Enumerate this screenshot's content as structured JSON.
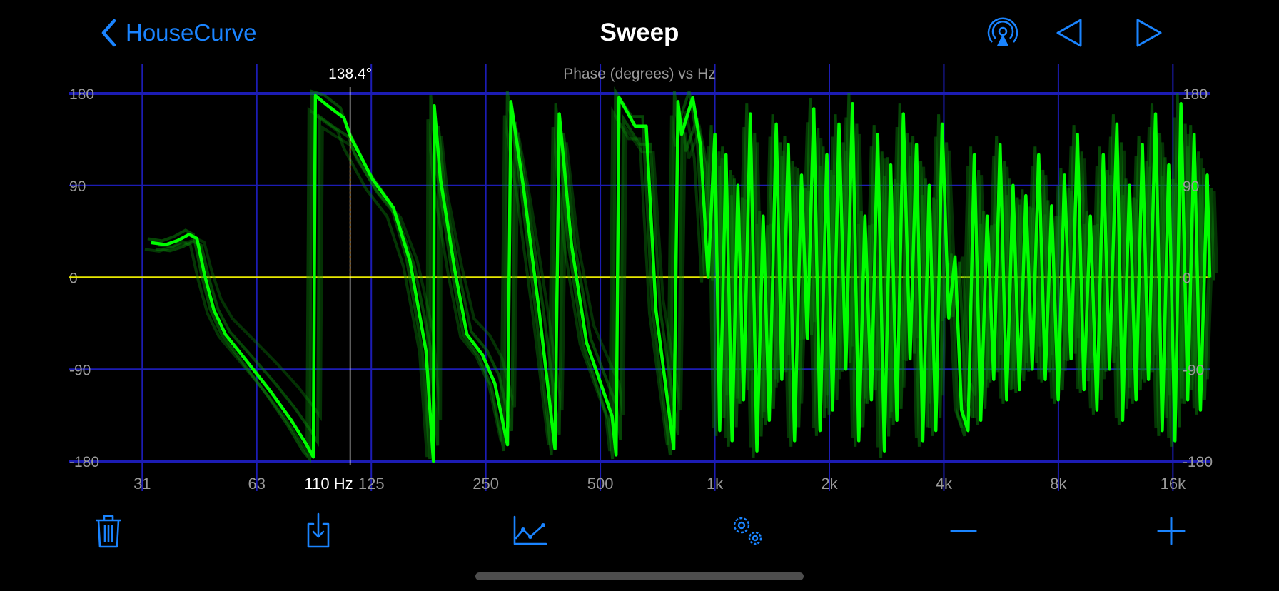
{
  "header": {
    "back_label": "HouseCurve",
    "title": "Sweep",
    "icons": [
      "airplay-audio-icon",
      "previous-triangle-icon",
      "next-triangle-icon"
    ]
  },
  "toolbar": {
    "icons": [
      "trash-icon",
      "download-icon",
      "chart-line-icon",
      "gears-icon",
      "minus-icon",
      "plus-icon"
    ]
  },
  "colors": {
    "accent": "#1a84ff",
    "curve": "#00ff00",
    "grid": "#1c1cb4",
    "zero_line": "#e8e800",
    "cursor": "#ffffff",
    "cursor_drop": "#ff9900"
  },
  "cursor": {
    "value_label": "138.4°",
    "freq_label": "110 Hz",
    "freq": 110,
    "phase": 138.4
  },
  "chart_data": {
    "type": "line",
    "title": "Phase (degrees) vs Hz",
    "xscale": "log",
    "xlim": [
      20,
      20000
    ],
    "ylim": [
      -180,
      180
    ],
    "grid": true,
    "x_ticks": [
      31.25,
      62.5,
      125,
      250,
      500,
      1000,
      2000,
      4000,
      8000,
      16000
    ],
    "x_tick_labels": [
      "31",
      "63",
      "125",
      "250",
      "500",
      "1k",
      "2k",
      "4k",
      "8k",
      "16k"
    ],
    "y_ticks": [
      180,
      90,
      0,
      -90,
      -180
    ],
    "y_tick_labels": [
      "180",
      "90",
      "0",
      "-90",
      "-180"
    ],
    "series": [
      {
        "points": [
          [
            33,
            34
          ],
          [
            36,
            32
          ],
          [
            38.7,
            36
          ],
          [
            41.5,
            42
          ],
          [
            43.5,
            38
          ],
          [
            45.6,
            2
          ],
          [
            48.2,
            -32
          ],
          [
            51.7,
            -56
          ],
          [
            58.2,
            -80
          ],
          [
            68,
            -112
          ],
          [
            77,
            -140
          ],
          [
            84.5,
            -164
          ],
          [
            88,
            -176
          ],
          [
            89.1,
            178
          ],
          [
            96,
            168
          ],
          [
            106,
            156
          ],
          [
            110,
            138.4
          ],
          [
            126,
            96
          ],
          [
            143,
            68
          ],
          [
            158,
            16
          ],
          [
            174,
            -72
          ],
          [
            182,
            -180
          ],
          [
            183,
            168
          ],
          [
            190,
            96
          ],
          [
            207,
            8
          ],
          [
            223,
            -56
          ],
          [
            245,
            -76
          ],
          [
            264,
            -104
          ],
          [
            285,
            -164
          ],
          [
            291,
            172
          ],
          [
            314,
            88
          ],
          [
            345,
            -32
          ],
          [
            380,
            -168
          ],
          [
            390,
            160
          ],
          [
            420,
            32
          ],
          [
            460,
            -64
          ],
          [
            537,
            -136
          ],
          [
            550,
            -174
          ],
          [
            560,
            176
          ],
          [
            617,
            148
          ],
          [
            660,
            148
          ],
          [
            700,
            -32
          ],
          [
            780,
            -168
          ],
          [
            800,
            172
          ],
          [
            818,
            140
          ],
          [
            875,
            176
          ],
          [
            918,
            128
          ],
          [
            960,
            0
          ],
          [
            1000,
            140
          ],
          [
            1030,
            -150
          ],
          [
            1070,
            120
          ],
          [
            1110,
            -160
          ],
          [
            1150,
            90
          ],
          [
            1190,
            -120
          ],
          [
            1240,
            160
          ],
          [
            1290,
            -170
          ],
          [
            1340,
            60
          ],
          [
            1390,
            -140
          ],
          [
            1450,
            150
          ],
          [
            1500,
            -100
          ],
          [
            1560,
            130
          ],
          [
            1620,
            -160
          ],
          [
            1690,
            100
          ],
          [
            1750,
            -60
          ],
          [
            1820,
            165
          ],
          [
            1890,
            -150
          ],
          [
            1970,
            120
          ],
          [
            2040,
            -130
          ],
          [
            2120,
            150
          ],
          [
            2210,
            -90
          ],
          [
            2300,
            170
          ],
          [
            2390,
            -160
          ],
          [
            2480,
            60
          ],
          [
            2580,
            -120
          ],
          [
            2680,
            140
          ],
          [
            2790,
            -170
          ],
          [
            2900,
            110
          ],
          [
            3010,
            -140
          ],
          [
            3130,
            160
          ],
          [
            3260,
            -80
          ],
          [
            3390,
            130
          ],
          [
            3520,
            -160
          ],
          [
            3660,
            90
          ],
          [
            3810,
            -150
          ],
          [
            3960,
            150
          ],
          [
            4120,
            -40
          ],
          [
            4280,
            20
          ],
          [
            4450,
            -130
          ],
          [
            4630,
            -150
          ],
          [
            4810,
            120
          ],
          [
            5000,
            -140
          ],
          [
            5200,
            60
          ],
          [
            5410,
            -100
          ],
          [
            5620,
            130
          ],
          [
            5850,
            -120
          ],
          [
            6080,
            90
          ],
          [
            6320,
            -110
          ],
          [
            6570,
            80
          ],
          [
            6830,
            -90
          ],
          [
            7100,
            120
          ],
          [
            7390,
            -100
          ],
          [
            7680,
            70
          ],
          [
            7990,
            -120
          ],
          [
            8300,
            100
          ],
          [
            8640,
            -80
          ],
          [
            8980,
            140
          ],
          [
            9340,
            -110
          ],
          [
            9710,
            60
          ],
          [
            10100,
            -130
          ],
          [
            10500,
            120
          ],
          [
            10900,
            -90
          ],
          [
            11400,
            150
          ],
          [
            11800,
            -140
          ],
          [
            12300,
            90
          ],
          [
            12800,
            -120
          ],
          [
            13300,
            130
          ],
          [
            13800,
            -100
          ],
          [
            14400,
            160
          ],
          [
            15000,
            -150
          ],
          [
            15600,
            110
          ],
          [
            16200,
            -160
          ],
          [
            16800,
            170
          ],
          [
            17500,
            -120
          ],
          [
            18200,
            140
          ],
          [
            18900,
            -130
          ],
          [
            19700,
            100
          ],
          [
            20000,
            0
          ]
        ]
      }
    ]
  }
}
